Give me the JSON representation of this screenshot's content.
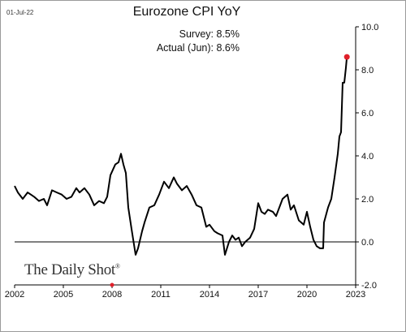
{
  "header": {
    "date": "01-Jul-22",
    "survey_label": "Survey:",
    "survey_value": "8.5%",
    "actual_label": "Actual (Jun):",
    "actual_value": "8.6%"
  },
  "brand": {
    "name": "The Daily Shot",
    "mark": "®"
  },
  "colors": {
    "line": "#000000",
    "marker": "#e0202a",
    "zero_line": "#000000"
  },
  "chart_data": {
    "type": "line",
    "title": "Eurozone CPI YoY",
    "xlabel": "",
    "ylabel": "",
    "xlim": [
      2002.0,
      2023.0
    ],
    "ylim": [
      -2.0,
      10.0
    ],
    "x_ticks": [
      2002,
      2005,
      2008,
      2011,
      2014,
      2017,
      2020,
      2023
    ],
    "y_ticks": [
      -2.0,
      0.0,
      2.0,
      4.0,
      6.0,
      8.0,
      10.0
    ],
    "y_tick_labels": [
      "-2.0",
      "0.0",
      "2.0",
      "4.0",
      "6.0",
      "8.0",
      "10.0"
    ],
    "y_axis_position": "right",
    "grid": false,
    "series": [
      {
        "points": [
          [
            2002.0,
            2.6
          ],
          [
            2002.2,
            2.3
          ],
          [
            2002.5,
            2.0
          ],
          [
            2002.8,
            2.3
          ],
          [
            2003.0,
            2.2
          ],
          [
            2003.2,
            2.1
          ],
          [
            2003.5,
            1.9
          ],
          [
            2003.8,
            2.0
          ],
          [
            2004.0,
            1.7
          ],
          [
            2004.3,
            2.4
          ],
          [
            2004.6,
            2.3
          ],
          [
            2004.9,
            2.2
          ],
          [
            2005.2,
            2.0
          ],
          [
            2005.5,
            2.1
          ],
          [
            2005.8,
            2.5
          ],
          [
            2006.0,
            2.3
          ],
          [
            2006.3,
            2.5
          ],
          [
            2006.6,
            2.2
          ],
          [
            2006.9,
            1.7
          ],
          [
            2007.2,
            1.9
          ],
          [
            2007.5,
            1.8
          ],
          [
            2007.7,
            2.1
          ],
          [
            2007.9,
            3.1
          ],
          [
            2008.2,
            3.6
          ],
          [
            2008.4,
            3.7
          ],
          [
            2008.55,
            4.1
          ],
          [
            2008.7,
            3.6
          ],
          [
            2008.85,
            3.2
          ],
          [
            2009.0,
            1.6
          ],
          [
            2009.2,
            0.6
          ],
          [
            2009.45,
            -0.6
          ],
          [
            2009.6,
            -0.3
          ],
          [
            2009.85,
            0.5
          ],
          [
            2010.0,
            0.9
          ],
          [
            2010.3,
            1.6
          ],
          [
            2010.6,
            1.7
          ],
          [
            2010.9,
            2.2
          ],
          [
            2011.2,
            2.8
          ],
          [
            2011.5,
            2.5
          ],
          [
            2011.8,
            3.0
          ],
          [
            2012.0,
            2.7
          ],
          [
            2012.3,
            2.4
          ],
          [
            2012.6,
            2.6
          ],
          [
            2012.9,
            2.2
          ],
          [
            2013.2,
            1.7
          ],
          [
            2013.5,
            1.6
          ],
          [
            2013.8,
            0.7
          ],
          [
            2014.0,
            0.8
          ],
          [
            2014.3,
            0.5
          ],
          [
            2014.5,
            0.4
          ],
          [
            2014.8,
            0.3
          ],
          [
            2014.95,
            -0.6
          ],
          [
            2015.2,
            0.0
          ],
          [
            2015.4,
            0.3
          ],
          [
            2015.6,
            0.1
          ],
          [
            2015.8,
            0.2
          ],
          [
            2016.0,
            -0.2
          ],
          [
            2016.2,
            0.0
          ],
          [
            2016.5,
            0.2
          ],
          [
            2016.75,
            0.6
          ],
          [
            2017.0,
            1.8
          ],
          [
            2017.2,
            1.4
          ],
          [
            2017.4,
            1.3
          ],
          [
            2017.6,
            1.5
          ],
          [
            2017.9,
            1.4
          ],
          [
            2018.1,
            1.2
          ],
          [
            2018.5,
            2.0
          ],
          [
            2018.8,
            2.2
          ],
          [
            2019.0,
            1.5
          ],
          [
            2019.2,
            1.7
          ],
          [
            2019.5,
            1.0
          ],
          [
            2019.8,
            0.8
          ],
          [
            2020.0,
            1.4
          ],
          [
            2020.2,
            0.7
          ],
          [
            2020.4,
            0.1
          ],
          [
            2020.6,
            -0.2
          ],
          [
            2020.8,
            -0.3
          ],
          [
            2021.0,
            -0.3
          ],
          [
            2021.05,
            0.9
          ],
          [
            2021.3,
            1.6
          ],
          [
            2021.5,
            2.0
          ],
          [
            2021.7,
            3.0
          ],
          [
            2021.9,
            4.1
          ],
          [
            2022.0,
            4.9
          ],
          [
            2022.1,
            5.1
          ],
          [
            2022.2,
            7.4
          ],
          [
            2022.3,
            7.4
          ],
          [
            2022.4,
            8.1
          ],
          [
            2022.46,
            8.6
          ]
        ]
      }
    ],
    "highlight_point": {
      "x": 2022.46,
      "y": 8.6
    },
    "highlight_point_extra": {
      "x": 2008.0,
      "y": -2.0
    },
    "reference_line": {
      "y": 0.0
    }
  }
}
